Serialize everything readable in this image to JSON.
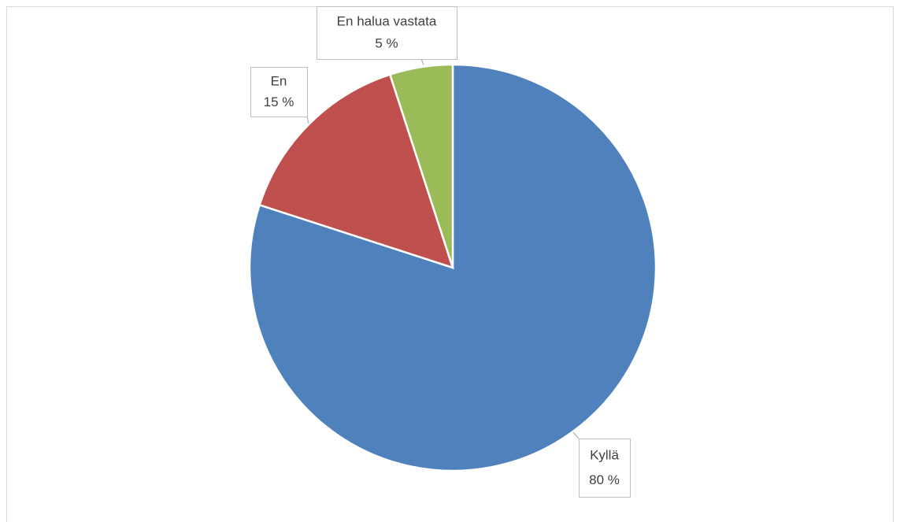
{
  "chart_data": {
    "type": "pie",
    "categories": [
      "Kyllä",
      "En",
      "En halua vastata"
    ],
    "values": [
      80,
      15,
      5
    ],
    "value_labels": [
      "80 %",
      "15 %",
      "5 %"
    ],
    "colors": [
      "#4f81bd",
      "#c0504d",
      "#9bbb59"
    ]
  }
}
